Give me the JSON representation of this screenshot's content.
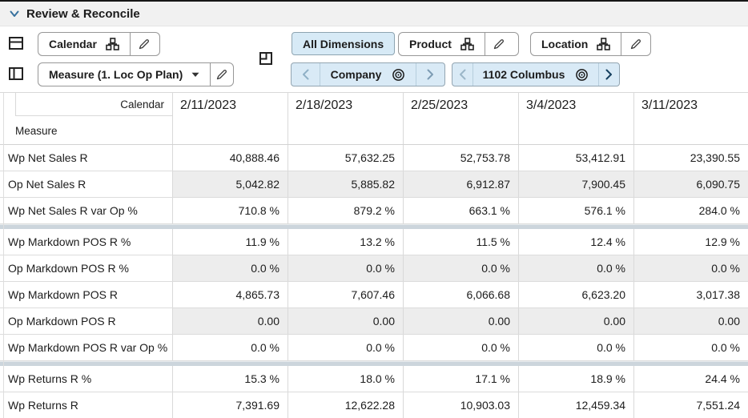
{
  "header": {
    "title": "Review & Reconcile"
  },
  "toolbar": {
    "calendar_tile": {
      "label": "Calendar"
    },
    "measure_tile": {
      "label": "Measure (1. Loc Op Plan)"
    },
    "all_dimensions_label": "All Dimensions",
    "product_tile": {
      "label": "Product"
    },
    "location_tile": {
      "label": "Location"
    },
    "product_nav": {
      "label": "Company"
    },
    "location_nav": {
      "label": "1102 Columbus"
    }
  },
  "grid": {
    "col_dim_label": "Calendar",
    "row_dim_label": "Measure",
    "columns": [
      "2/11/2023",
      "2/18/2023",
      "2/25/2023",
      "3/4/2023",
      "3/11/2023"
    ],
    "rows": [
      {
        "label": "Wp Net Sales R",
        "shaded": false,
        "separator_before": false,
        "values": [
          "40,888.46",
          "57,632.25",
          "52,753.78",
          "53,412.91",
          "23,390.55"
        ]
      },
      {
        "label": "Op Net Sales R",
        "shaded": true,
        "separator_before": false,
        "values": [
          "5,042.82",
          "5,885.82",
          "6,912.87",
          "7,900.45",
          "6,090.75"
        ]
      },
      {
        "label": "Wp Net Sales R var Op %",
        "shaded": false,
        "separator_before": false,
        "values": [
          "710.8 %",
          "879.2 %",
          "663.1 %",
          "576.1 %",
          "284.0 %"
        ]
      },
      {
        "label": "Wp Markdown POS R %",
        "shaded": false,
        "separator_before": true,
        "values": [
          "11.9 %",
          "13.2 %",
          "11.5 %",
          "12.4 %",
          "12.9 %"
        ]
      },
      {
        "label": "Op Markdown POS R %",
        "shaded": true,
        "separator_before": false,
        "values": [
          "0.0 %",
          "0.0 %",
          "0.0 %",
          "0.0 %",
          "0.0 %"
        ]
      },
      {
        "label": "Wp Markdown POS R",
        "shaded": false,
        "separator_before": false,
        "values": [
          "4,865.73",
          "7,607.46",
          "6,066.68",
          "6,623.20",
          "3,017.38"
        ]
      },
      {
        "label": "Op Markdown POS R",
        "shaded": true,
        "separator_before": false,
        "values": [
          "0.00",
          "0.00",
          "0.00",
          "0.00",
          "0.00"
        ]
      },
      {
        "label": "Wp Markdown POS R var Op %",
        "shaded": false,
        "separator_before": false,
        "values": [
          "0.0 %",
          "0.0 %",
          "0.0 %",
          "0.0 %",
          "0.0 %"
        ]
      },
      {
        "label": "Wp Returns R %",
        "shaded": false,
        "separator_before": true,
        "values": [
          "15.3 %",
          "18.0 %",
          "17.1 %",
          "18.9 %",
          "24.4 %"
        ]
      },
      {
        "label": "Wp Returns R",
        "shaded": false,
        "separator_before": false,
        "values": [
          "7,391.69",
          "12,622.28",
          "10,903.03",
          "12,459.34",
          "7,551.24"
        ]
      }
    ]
  },
  "icons": {
    "title_collapse": "chevron-down-icon",
    "rows_axis": "rows-layout-icon",
    "columns_axis": "columns-layout-icon",
    "page_axis": "page-layout-icon",
    "hierarchy": "hierarchy-icon",
    "edit": "pencil-icon",
    "dropdown": "caret-down-icon",
    "nav_prev": "chevron-left-icon",
    "nav_next": "chevron-right-icon",
    "focus": "bullseye-icon"
  },
  "colors": {
    "accent_fill": "#d7eaf6",
    "accent_border": "#93a5b1",
    "shaded_cell": "#ededed",
    "group_separator": "#ccd5dc",
    "titlebar_bg": "#f1f1f1",
    "chevron_blue": "#36719e"
  }
}
